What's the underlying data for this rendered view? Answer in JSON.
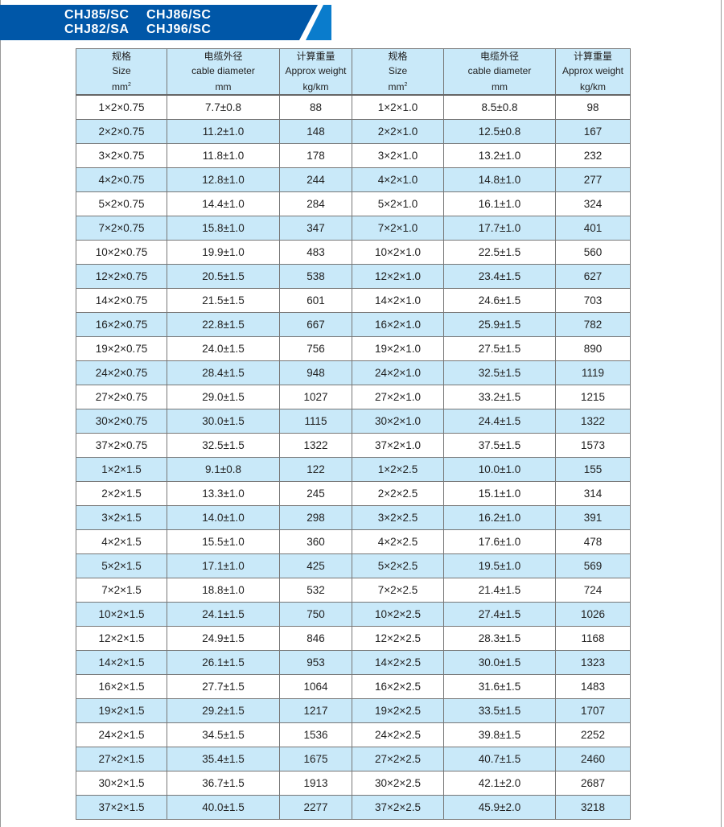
{
  "banner": {
    "models": [
      [
        "CHJ85/SC",
        "CHJ86/SC"
      ],
      [
        "CHJ82/SA",
        "CHJ96/SC"
      ]
    ],
    "color": "#0057a8",
    "accent": "#0a7ccc"
  },
  "table": {
    "headers": [
      {
        "cn": "规格",
        "en": "Size",
        "unit": "mm",
        "sup": "2"
      },
      {
        "cn": "电缆外径",
        "en": "cable diameter",
        "unit": "mm",
        "sup": ""
      },
      {
        "cn": "计算重量",
        "en": "Approx weight",
        "unit": "kg/km",
        "sup": ""
      },
      {
        "cn": "规格",
        "en": "Size",
        "unit": "mm",
        "sup": "2"
      },
      {
        "cn": "电缆外径",
        "en": "cable diameter",
        "unit": "mm",
        "sup": ""
      },
      {
        "cn": "计算重量",
        "en": "Approx weight",
        "unit": "kg/km",
        "sup": ""
      }
    ],
    "stripe_color": "#c9e9f9",
    "rows": [
      [
        "1×2×0.75",
        "7.7±0.8",
        "88",
        "1×2×1.0",
        "8.5±0.8",
        "98"
      ],
      [
        "2×2×0.75",
        "11.2±1.0",
        "148",
        "2×2×1.0",
        "12.5±0.8",
        "167"
      ],
      [
        "3×2×0.75",
        "11.8±1.0",
        "178",
        "3×2×1.0",
        "13.2±1.0",
        "232"
      ],
      [
        "4×2×0.75",
        "12.8±1.0",
        "244",
        "4×2×1.0",
        "14.8±1.0",
        "277"
      ],
      [
        "5×2×0.75",
        "14.4±1.0",
        "284",
        "5×2×1.0",
        "16.1±1.0",
        "324"
      ],
      [
        "7×2×0.75",
        "15.8±1.0",
        "347",
        "7×2×1.0",
        "17.7±1.0",
        "401"
      ],
      [
        "10×2×0.75",
        "19.9±1.0",
        "483",
        "10×2×1.0",
        "22.5±1.5",
        "560"
      ],
      [
        "12×2×0.75",
        "20.5±1.5",
        "538",
        "12×2×1.0",
        "23.4±1.5",
        "627"
      ],
      [
        "14×2×0.75",
        "21.5±1.5",
        "601",
        "14×2×1.0",
        "24.6±1.5",
        "703"
      ],
      [
        "16×2×0.75",
        "22.8±1.5",
        "667",
        "16×2×1.0",
        "25.9±1.5",
        "782"
      ],
      [
        "19×2×0.75",
        "24.0±1.5",
        "756",
        "19×2×1.0",
        "27.5±1.5",
        "890"
      ],
      [
        "24×2×0.75",
        "28.4±1.5",
        "948",
        "24×2×1.0",
        "32.5±1.5",
        "1119"
      ],
      [
        "27×2×0.75",
        "29.0±1.5",
        "1027",
        "27×2×1.0",
        "33.2±1.5",
        "1215"
      ],
      [
        "30×2×0.75",
        "30.0±1.5",
        "1115",
        "30×2×1.0",
        "24.4±1.5",
        "1322"
      ],
      [
        "37×2×0.75",
        "32.5±1.5",
        "1322",
        "37×2×1.0",
        "37.5±1.5",
        "1573"
      ],
      [
        "1×2×1.5",
        "9.1±0.8",
        "122",
        "1×2×2.5",
        "10.0±1.0",
        "155"
      ],
      [
        "2×2×1.5",
        "13.3±1.0",
        "245",
        "2×2×2.5",
        "15.1±1.0",
        "314"
      ],
      [
        "3×2×1.5",
        "14.0±1.0",
        "298",
        "3×2×2.5",
        "16.2±1.0",
        "391"
      ],
      [
        "4×2×1.5",
        "15.5±1.0",
        "360",
        "4×2×2.5",
        "17.6±1.0",
        "478"
      ],
      [
        "5×2×1.5",
        "17.1±1.0",
        "425",
        "5×2×2.5",
        "19.5±1.0",
        "569"
      ],
      [
        "7×2×1.5",
        "18.8±1.0",
        "532",
        "7×2×2.5",
        "21.4±1.5",
        "724"
      ],
      [
        "10×2×1.5",
        "24.1±1.5",
        "750",
        "10×2×2.5",
        "27.4±1.5",
        "1026"
      ],
      [
        "12×2×1.5",
        "24.9±1.5",
        "846",
        "12×2×2.5",
        "28.3±1.5",
        "1168"
      ],
      [
        "14×2×1.5",
        "26.1±1.5",
        "953",
        "14×2×2.5",
        "30.0±1.5",
        "1323"
      ],
      [
        "16×2×1.5",
        "27.7±1.5",
        "1064",
        "16×2×2.5",
        "31.6±1.5",
        "1483"
      ],
      [
        "19×2×1.5",
        "29.2±1.5",
        "1217",
        "19×2×2.5",
        "33.5±1.5",
        "1707"
      ],
      [
        "24×2×1.5",
        "34.5±1.5",
        "1536",
        "24×2×2.5",
        "39.8±1.5",
        "2252"
      ],
      [
        "27×2×1.5",
        "35.4±1.5",
        "1675",
        "27×2×2.5",
        "40.7±1.5",
        "2460"
      ],
      [
        "30×2×1.5",
        "36.7±1.5",
        "1913",
        "30×2×2.5",
        "42.1±2.0",
        "2687"
      ],
      [
        "37×2×1.5",
        "40.0±1.5",
        "2277",
        "37×2×2.5",
        "45.9±2.0",
        "3218"
      ]
    ]
  }
}
